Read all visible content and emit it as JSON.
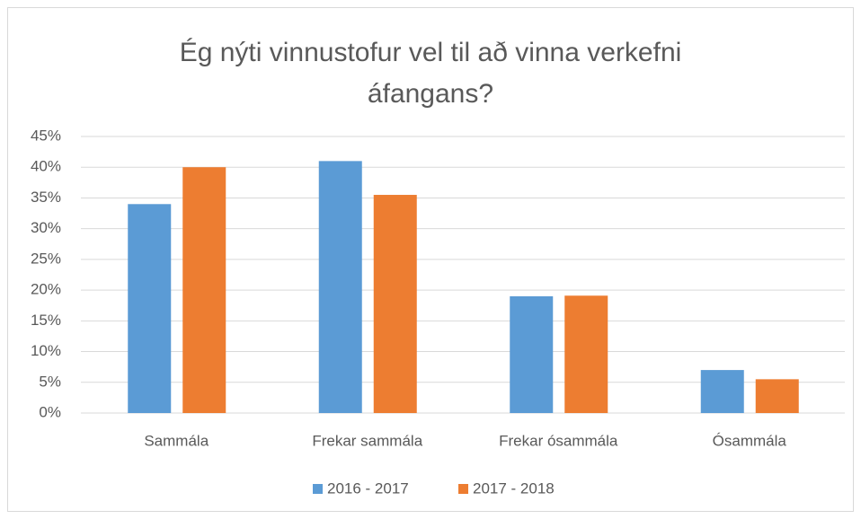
{
  "chart_data": {
    "type": "bar",
    "title": "Ég nýti vinnustofur vel til að vinna verkefni áfangans?",
    "categories": [
      "Sammála",
      "Frekar sammála",
      "Frekar ósammála",
      "Ósammála"
    ],
    "series": [
      {
        "name": "2016 - 2017",
        "color": "#5b9bd5",
        "values": [
          34,
          41,
          19,
          7
        ]
      },
      {
        "name": "2017 - 2018",
        "color": "#ed7d31",
        "values": [
          40,
          35.5,
          19.1,
          5.5
        ]
      }
    ],
    "ylim": [
      0,
      45
    ],
    "yticks": [
      {
        "value": 0,
        "label": "0%"
      },
      {
        "value": 5,
        "label": "5%"
      },
      {
        "value": 10,
        "label": "10%"
      },
      {
        "value": 15,
        "label": "15%"
      },
      {
        "value": 20,
        "label": "20%"
      },
      {
        "value": 25,
        "label": "25%"
      },
      {
        "value": 30,
        "label": "30%"
      },
      {
        "value": 35,
        "label": "35%"
      },
      {
        "value": 40,
        "label": "40%"
      },
      {
        "value": 45,
        "label": "45%"
      }
    ],
    "grid": true,
    "legend": "bottom"
  }
}
